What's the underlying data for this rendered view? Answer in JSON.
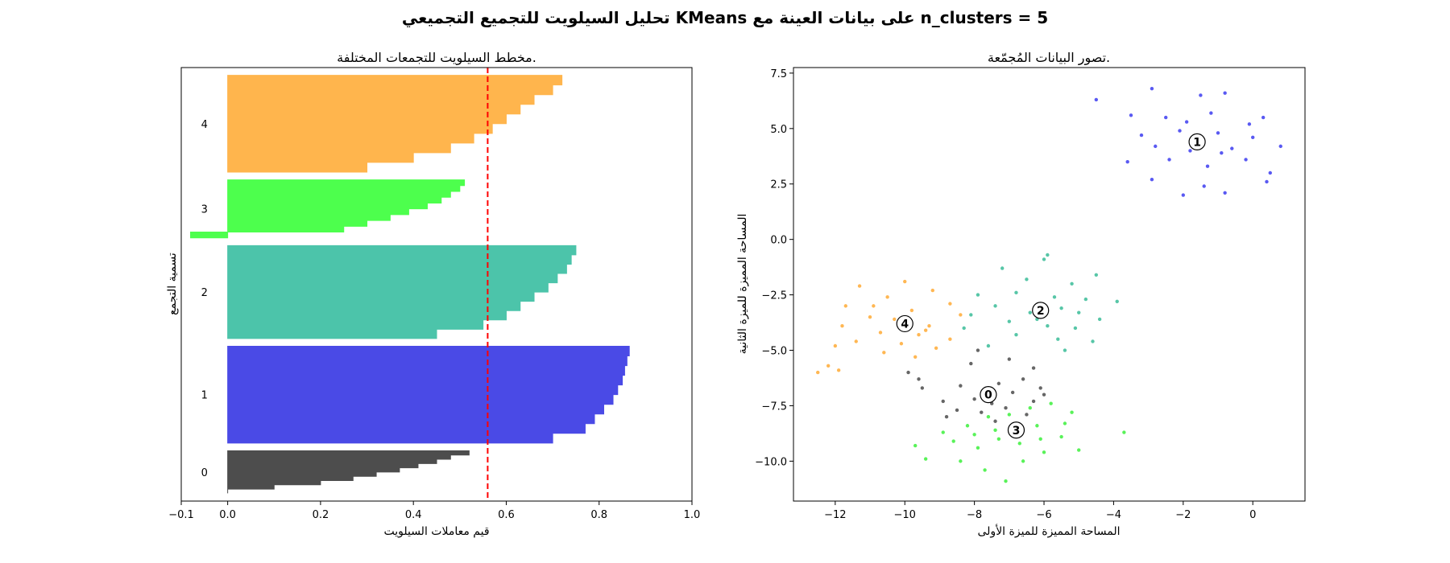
{
  "chart_data": [
    {
      "type": "area",
      "suptitle": "تحليل السيلويت للتجميع التجميعي KMeans على بيانات العينة مع n_clusters = 5",
      "title": "مخطط السيلويت للتجمعات المختلفة.",
      "xlabel": "قيم معاملات السيلويت",
      "ylabel": "تسمية التجمع",
      "xlim": [
        -0.1,
        1.0
      ],
      "xticks": [
        "−0.1",
        "0.0",
        "0.2",
        "0.4",
        "0.6",
        "0.8",
        "1.0"
      ],
      "xtick_values": [
        -0.1,
        0.0,
        0.2,
        0.4,
        0.6,
        0.8,
        1.0
      ],
      "ylim": [
        0,
        560
      ],
      "average_silhouette": 0.56,
      "average_line_color": "#ff0000",
      "clusters": [
        {
          "label": "0",
          "size": 55,
          "color": "#4d4d4d",
          "values": [
            0.0,
            0.1,
            0.2,
            0.27,
            0.32,
            0.37,
            0.41,
            0.45,
            0.48,
            0.52
          ]
        },
        {
          "label": "1",
          "size": 125,
          "color": "#4a4ae6",
          "values": [
            0.7,
            0.77,
            0.79,
            0.81,
            0.83,
            0.84,
            0.85,
            0.855,
            0.86,
            0.865
          ]
        },
        {
          "label": "2",
          "size": 120,
          "color": "#4cc4aa",
          "values": [
            0.45,
            0.55,
            0.6,
            0.63,
            0.66,
            0.69,
            0.71,
            0.73,
            0.74,
            0.75
          ]
        },
        {
          "label": "3",
          "size": 75,
          "color": "#4dff4d",
          "values": [
            -0.08,
            0.25,
            0.3,
            0.35,
            0.39,
            0.43,
            0.46,
            0.48,
            0.5,
            0.51
          ]
        },
        {
          "label": "4",
          "size": 125,
          "color": "#ffb54d",
          "values": [
            0.3,
            0.4,
            0.48,
            0.53,
            0.57,
            0.6,
            0.63,
            0.66,
            0.7,
            0.72
          ]
        }
      ]
    },
    {
      "type": "scatter",
      "title": "تصور البيانات المُجمّعة.",
      "xlabel": "المساحة المميزة للميزة الأولى",
      "ylabel": "المساحة المميزة للميزة الثانية",
      "xlim": [
        -13.2,
        1.5
      ],
      "ylim": [
        -11.8,
        7.75
      ],
      "xticks": [
        "−12",
        "−10",
        "−8",
        "−6",
        "−4",
        "−2",
        "0"
      ],
      "xtick_values": [
        -12,
        -10,
        -8,
        -6,
        -4,
        -2,
        0
      ],
      "yticks": [
        "7.5",
        "5.0",
        "2.5",
        "0.0",
        "−2.5",
        "−5.0",
        "−7.5",
        "−10.0"
      ],
      "ytick_values": [
        7.5,
        5.0,
        2.5,
        0.0,
        -2.5,
        -5.0,
        -7.5,
        -10.0
      ],
      "centers": [
        {
          "label": "0",
          "x": -7.6,
          "y": -7.0
        },
        {
          "label": "1",
          "x": -1.6,
          "y": 4.4
        },
        {
          "label": "2",
          "x": -6.1,
          "y": -3.2
        },
        {
          "label": "3",
          "x": -6.8,
          "y": -8.6
        },
        {
          "label": "4",
          "x": -10.0,
          "y": -3.8
        }
      ],
      "series": [
        {
          "cluster": "0",
          "color": "#333333",
          "points": [
            [
              -9.9,
              -6.0
            ],
            [
              -9.6,
              -6.3
            ],
            [
              -8.1,
              -5.6
            ],
            [
              -7.9,
              -5.0
            ],
            [
              -7.0,
              -5.4
            ],
            [
              -6.3,
              -5.8
            ],
            [
              -9.5,
              -6.7
            ],
            [
              -8.4,
              -6.6
            ],
            [
              -7.3,
              -6.5
            ],
            [
              -6.6,
              -6.3
            ],
            [
              -6.1,
              -6.7
            ],
            [
              -8.9,
              -7.3
            ],
            [
              -8.0,
              -7.2
            ],
            [
              -7.5,
              -7.4
            ],
            [
              -6.9,
              -6.9
            ],
            [
              -6.3,
              -7.3
            ],
            [
              -8.5,
              -7.7
            ],
            [
              -7.8,
              -7.8
            ],
            [
              -7.1,
              -7.6
            ],
            [
              -6.5,
              -7.9
            ],
            [
              -8.8,
              -8.0
            ],
            [
              -7.4,
              -8.2
            ],
            [
              -6.0,
              -7.0
            ]
          ]
        },
        {
          "cluster": "1",
          "color": "#2222ee",
          "points": [
            [
              -4.5,
              6.3
            ],
            [
              -2.9,
              6.8
            ],
            [
              -1.5,
              6.5
            ],
            [
              -0.8,
              6.6
            ],
            [
              -3.5,
              5.6
            ],
            [
              -2.5,
              5.5
            ],
            [
              -1.2,
              5.7
            ],
            [
              -0.1,
              5.2
            ],
            [
              0.3,
              5.5
            ],
            [
              -3.2,
              4.7
            ],
            [
              -2.1,
              4.9
            ],
            [
              -1.0,
              4.8
            ],
            [
              0.0,
              4.6
            ],
            [
              -2.8,
              4.2
            ],
            [
              -1.8,
              4.0
            ],
            [
              -0.6,
              4.1
            ],
            [
              0.8,
              4.2
            ],
            [
              -3.6,
              3.5
            ],
            [
              -2.4,
              3.6
            ],
            [
              -1.3,
              3.3
            ],
            [
              -0.2,
              3.6
            ],
            [
              -2.9,
              2.7
            ],
            [
              -1.4,
              2.4
            ],
            [
              -0.8,
              2.1
            ],
            [
              -2.0,
              2.0
            ],
            [
              0.4,
              2.6
            ],
            [
              0.5,
              3.0
            ],
            [
              -1.9,
              5.3
            ],
            [
              -1.6,
              4.6
            ],
            [
              -0.9,
              3.9
            ]
          ]
        },
        {
          "cluster": "2",
          "color": "#1fb38a",
          "points": [
            [
              -5.9,
              -0.7
            ],
            [
              -6.0,
              -0.9
            ],
            [
              -4.5,
              -1.6
            ],
            [
              -7.2,
              -1.3
            ],
            [
              -6.5,
              -1.8
            ],
            [
              -5.2,
              -2.0
            ],
            [
              -7.9,
              -2.5
            ],
            [
              -6.8,
              -2.4
            ],
            [
              -5.7,
              -2.6
            ],
            [
              -4.8,
              -2.7
            ],
            [
              -3.9,
              -2.8
            ],
            [
              -7.4,
              -3.0
            ],
            [
              -6.4,
              -3.3
            ],
            [
              -5.5,
              -3.1
            ],
            [
              -4.4,
              -3.6
            ],
            [
              -8.1,
              -3.4
            ],
            [
              -7.0,
              -3.7
            ],
            [
              -5.9,
              -3.9
            ],
            [
              -5.1,
              -4.0
            ],
            [
              -8.3,
              -4.0
            ],
            [
              -6.8,
              -4.3
            ],
            [
              -5.6,
              -4.5
            ],
            [
              -4.6,
              -4.6
            ],
            [
              -5.4,
              -5.0
            ],
            [
              -7.6,
              -4.8
            ],
            [
              -6.2,
              -3.6
            ],
            [
              -5.0,
              -3.3
            ]
          ]
        },
        {
          "cluster": "3",
          "color": "#22ee22",
          "points": [
            [
              -9.7,
              -9.3
            ],
            [
              -9.4,
              -9.9
            ],
            [
              -8.9,
              -8.7
            ],
            [
              -8.2,
              -8.4
            ],
            [
              -7.6,
              -8.0
            ],
            [
              -7.0,
              -7.9
            ],
            [
              -6.4,
              -7.6
            ],
            [
              -5.8,
              -7.4
            ],
            [
              -5.2,
              -7.8
            ],
            [
              -8.6,
              -9.1
            ],
            [
              -7.9,
              -9.4
            ],
            [
              -7.3,
              -9.0
            ],
            [
              -6.7,
              -9.2
            ],
            [
              -6.1,
              -9.0
            ],
            [
              -5.5,
              -8.9
            ],
            [
              -5.0,
              -9.5
            ],
            [
              -3.7,
              -8.7
            ],
            [
              -8.4,
              -10.0
            ],
            [
              -7.7,
              -10.4
            ],
            [
              -7.1,
              -10.9
            ],
            [
              -6.6,
              -10.0
            ],
            [
              -6.0,
              -9.6
            ],
            [
              -5.4,
              -8.3
            ],
            [
              -7.4,
              -8.6
            ],
            [
              -6.2,
              -8.4
            ],
            [
              -8.0,
              -8.8
            ]
          ]
        },
        {
          "cluster": "4",
          "color": "#ff9f1a",
          "points": [
            [
              -10.0,
              -1.9
            ],
            [
              -11.3,
              -2.1
            ],
            [
              -9.2,
              -2.3
            ],
            [
              -10.5,
              -2.6
            ],
            [
              -8.7,
              -2.9
            ],
            [
              -11.7,
              -3.0
            ],
            [
              -9.8,
              -3.2
            ],
            [
              -8.4,
              -3.4
            ],
            [
              -11.0,
              -3.5
            ],
            [
              -10.3,
              -3.6
            ],
            [
              -9.3,
              -3.9
            ],
            [
              -11.8,
              -3.9
            ],
            [
              -10.7,
              -4.2
            ],
            [
              -9.6,
              -4.3
            ],
            [
              -8.7,
              -4.5
            ],
            [
              -11.4,
              -4.6
            ],
            [
              -10.1,
              -4.7
            ],
            [
              -9.1,
              -4.9
            ],
            [
              -12.0,
              -4.8
            ],
            [
              -10.6,
              -5.1
            ],
            [
              -9.7,
              -5.3
            ],
            [
              -12.2,
              -5.7
            ],
            [
              -12.5,
              -6.0
            ],
            [
              -11.9,
              -5.9
            ],
            [
              -9.4,
              -4.1
            ],
            [
              -10.9,
              -3.0
            ]
          ]
        }
      ]
    }
  ]
}
